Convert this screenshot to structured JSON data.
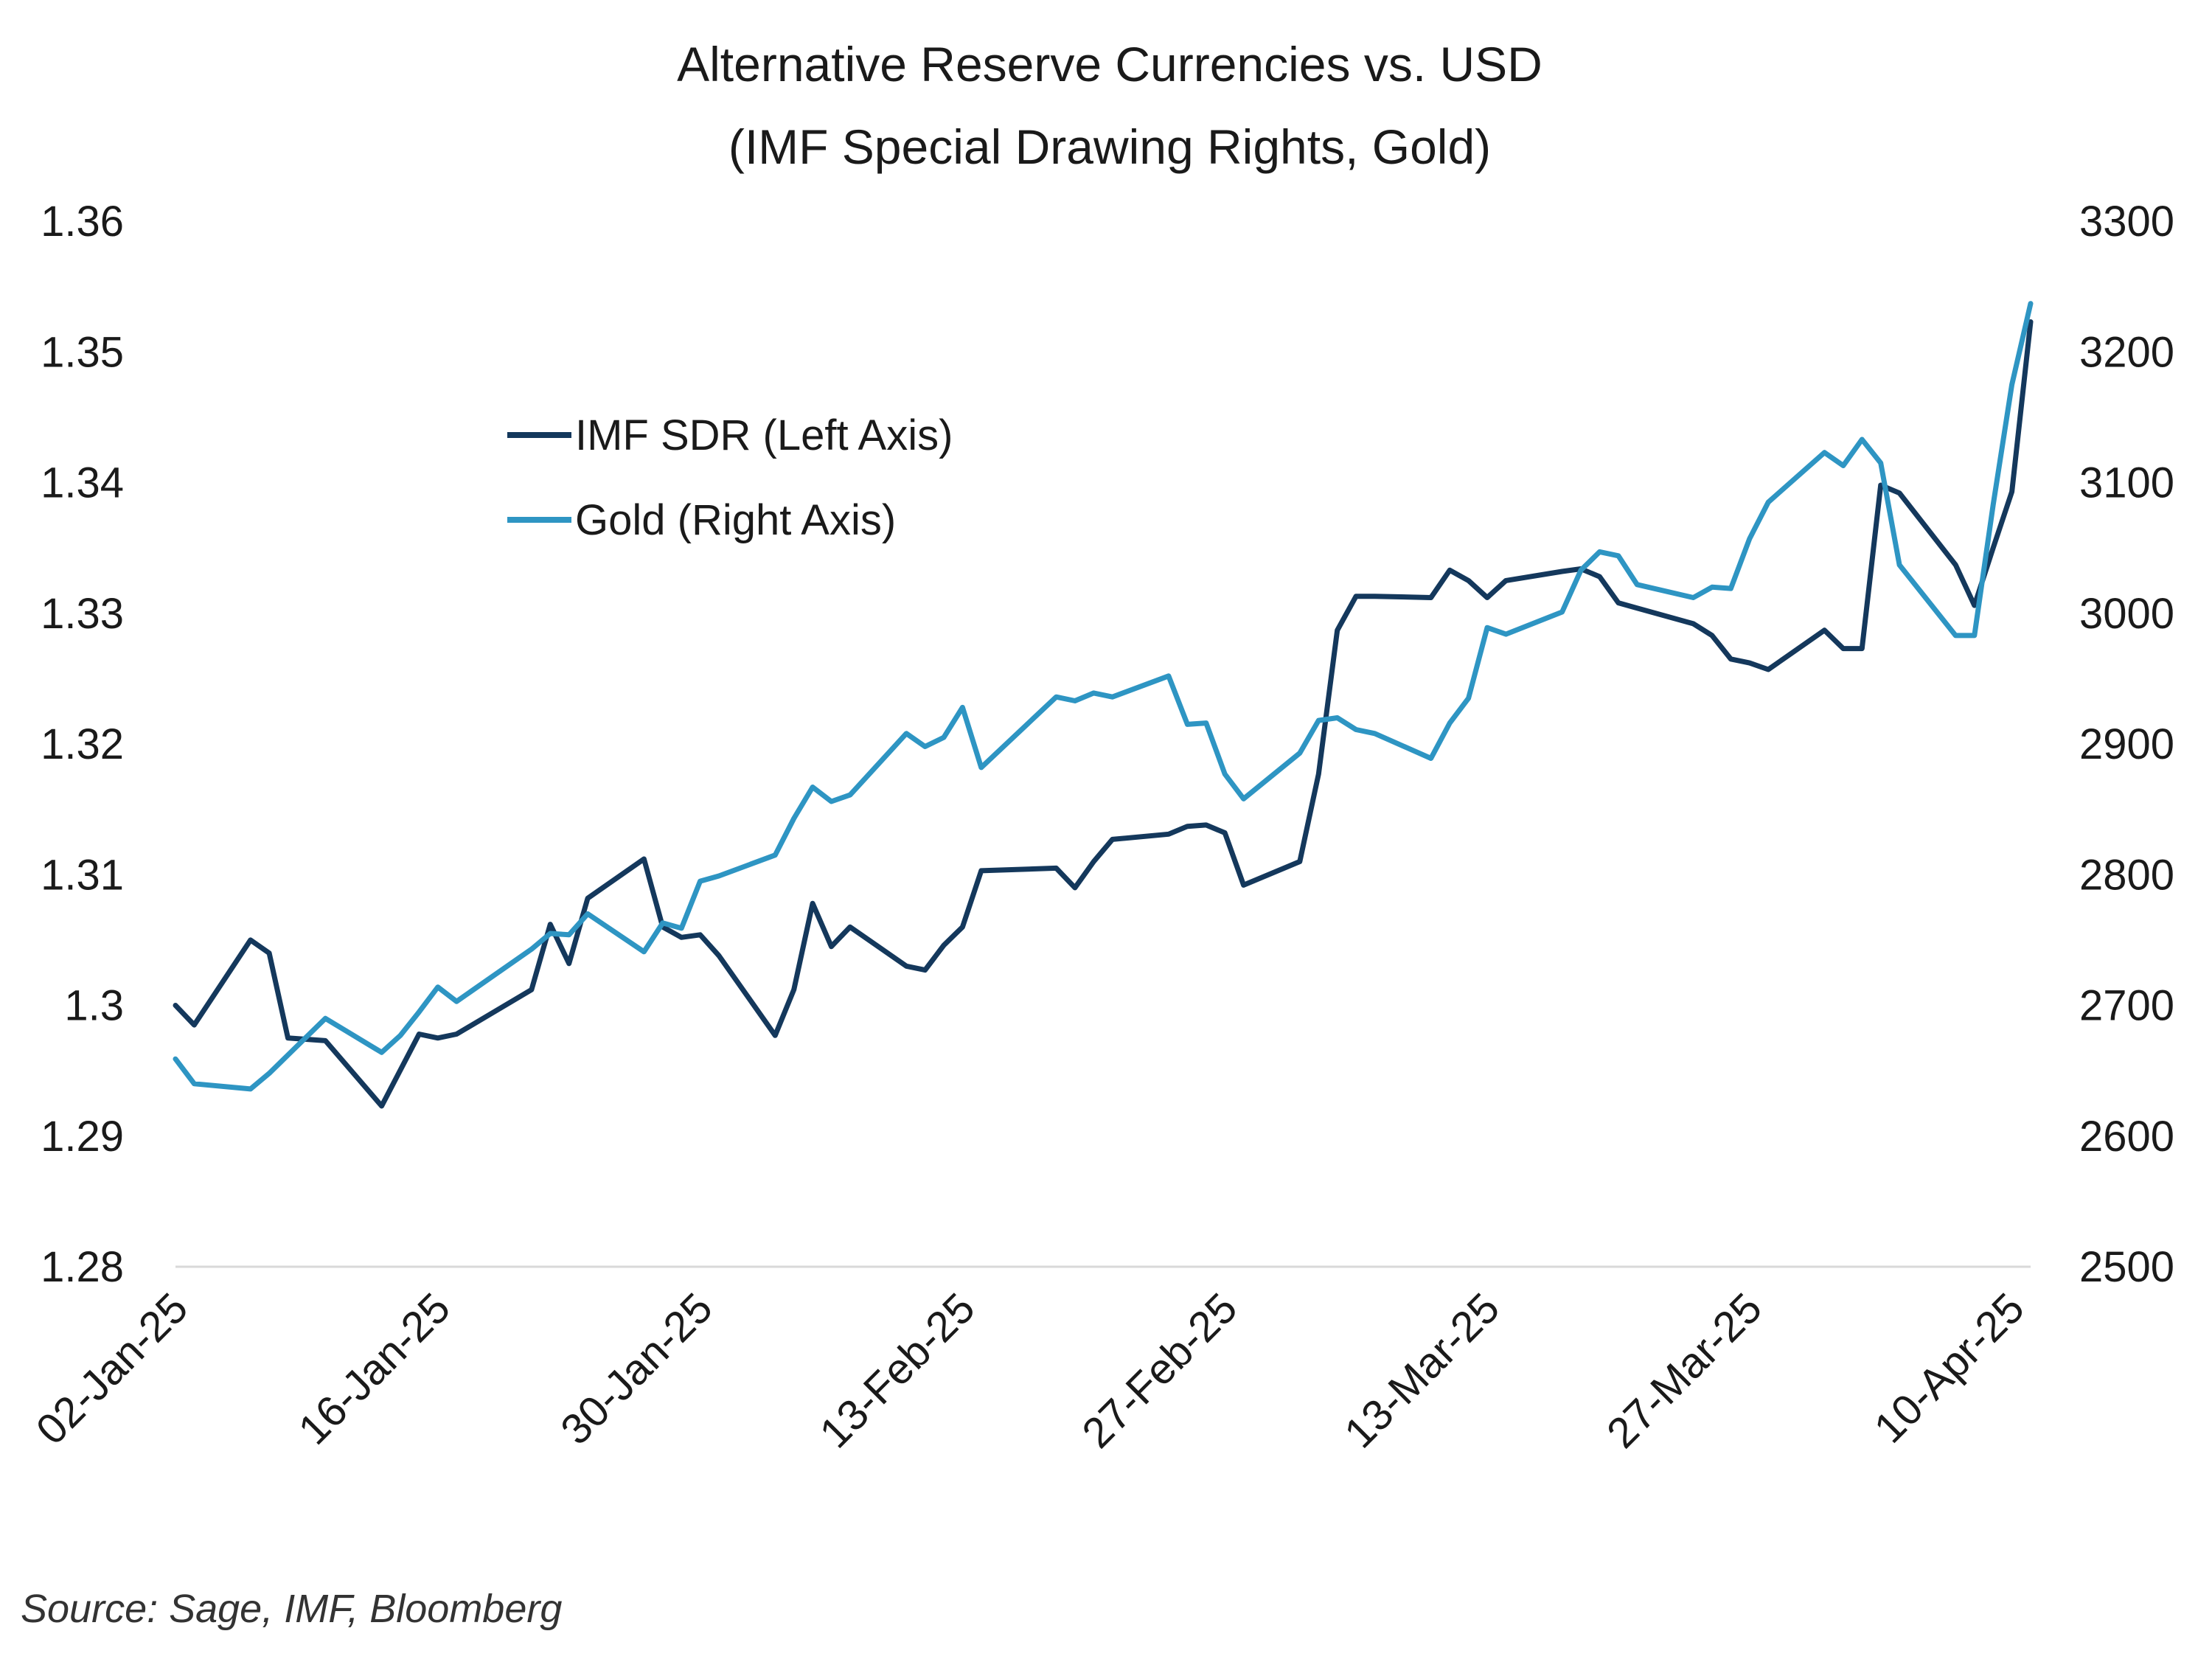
{
  "chart_data": {
    "type": "line",
    "title": [
      "Alternative Reserve Currencies vs. USD",
      "(IMF Special Drawing Rights, Gold)"
    ],
    "source": "Source: Sage, IMF, Bloomberg",
    "x_ticks": [
      "02-Jan-25",
      "16-Jan-25",
      "30-Jan-25",
      "13-Feb-25",
      "27-Feb-25",
      "13-Mar-25",
      "27-Mar-25",
      "10-Apr-25"
    ],
    "x_range": [
      "2025-01-02",
      "2025-04-11"
    ],
    "y_left": {
      "min": 1.28,
      "max": 1.36,
      "ticks": [
        "1.28",
        "1.29",
        "1.3",
        "1.31",
        "1.32",
        "1.33",
        "1.34",
        "1.35",
        "1.36"
      ]
    },
    "y_right": {
      "min": 2500,
      "max": 3300,
      "ticks": [
        "2500",
        "2600",
        "2700",
        "2800",
        "2900",
        "3000",
        "3100",
        "3200",
        "3300"
      ]
    },
    "legend": {
      "placement": "upper-left",
      "entries": [
        "IMF SDR (Left Axis)",
        "Gold (Right Axis)"
      ]
    },
    "grid": false,
    "series": [
      {
        "name": "IMF SDR (Left Axis)",
        "axis": "left",
        "color": "#14385c",
        "points": [
          [
            "2025-01-02",
            1.3
          ],
          [
            "2025-01-03",
            1.2985
          ],
          [
            "2025-01-06",
            1.305
          ],
          [
            "2025-01-07",
            1.304
          ],
          [
            "2025-01-08",
            1.2975
          ],
          [
            "2025-01-10",
            1.2973
          ],
          [
            "2025-01-13",
            1.2923
          ],
          [
            "2025-01-15",
            1.2978
          ],
          [
            "2025-01-16",
            1.2975
          ],
          [
            "2025-01-17",
            1.2978
          ],
          [
            "2025-01-21",
            1.3012
          ],
          [
            "2025-01-22",
            1.3062
          ],
          [
            "2025-01-23",
            1.3032
          ],
          [
            "2025-01-24",
            1.3082
          ],
          [
            "2025-01-27",
            1.3112
          ],
          [
            "2025-01-28",
            1.306
          ],
          [
            "2025-01-29",
            1.3052
          ],
          [
            "2025-01-30",
            1.3054
          ],
          [
            "2025-01-31",
            1.3038
          ],
          [
            "2025-02-03",
            1.2977
          ],
          [
            "2025-02-04",
            1.3012
          ],
          [
            "2025-02-05",
            1.3078
          ],
          [
            "2025-02-06",
            1.3045
          ],
          [
            "2025-02-07",
            1.306
          ],
          [
            "2025-02-10",
            1.303
          ],
          [
            "2025-02-11",
            1.3027
          ],
          [
            "2025-02-12",
            1.3046
          ],
          [
            "2025-02-13",
            1.306
          ],
          [
            "2025-02-14",
            1.3103
          ],
          [
            "2025-02-18",
            1.3105
          ],
          [
            "2025-02-19",
            1.309
          ],
          [
            "2025-02-20",
            1.311
          ],
          [
            "2025-02-21",
            1.3127
          ],
          [
            "2025-02-24",
            1.3131
          ],
          [
            "2025-02-25",
            1.3137
          ],
          [
            "2025-02-26",
            1.3138
          ],
          [
            "2025-02-27",
            1.3132
          ],
          [
            "2025-02-28",
            1.3092
          ],
          [
            "2025-03-03",
            1.311
          ],
          [
            "2025-03-04",
            1.3177
          ],
          [
            "2025-03-05",
            1.3287
          ],
          [
            "2025-03-06",
            1.3313
          ],
          [
            "2025-03-07",
            1.3313
          ],
          [
            "2025-03-10",
            1.3312
          ],
          [
            "2025-03-11",
            1.3333
          ],
          [
            "2025-03-12",
            1.3325
          ],
          [
            "2025-03-13",
            1.3312
          ],
          [
            "2025-03-14",
            1.3325
          ],
          [
            "2025-03-17",
            1.3332
          ],
          [
            "2025-03-18",
            1.3334
          ],
          [
            "2025-03-19",
            1.3328
          ],
          [
            "2025-03-20",
            1.3308
          ],
          [
            "2025-03-21",
            1.3304
          ],
          [
            "2025-03-24",
            1.3292
          ],
          [
            "2025-03-25",
            1.3283
          ],
          [
            "2025-03-26",
            1.3265
          ],
          [
            "2025-03-27",
            1.3262
          ],
          [
            "2025-03-28",
            1.3257
          ],
          [
            "2025-03-31",
            1.3287
          ],
          [
            "2025-04-01",
            1.3273
          ],
          [
            "2025-04-02",
            1.3273
          ],
          [
            "2025-04-03",
            1.3398
          ],
          [
            "2025-04-04",
            1.3392
          ],
          [
            "2025-04-07",
            1.3337
          ],
          [
            "2025-04-08",
            1.3306
          ],
          [
            "2025-04-09",
            1.335
          ],
          [
            "2025-04-10",
            1.3393
          ],
          [
            "2025-04-11",
            1.3523
          ]
        ]
      },
      {
        "name": "Gold (Right Axis)",
        "axis": "right",
        "color": "#2e95c3",
        "points": [
          [
            "2025-01-02",
            2659
          ],
          [
            "2025-01-03",
            2640
          ],
          [
            "2025-01-06",
            2636
          ],
          [
            "2025-01-07",
            2648
          ],
          [
            "2025-01-08",
            2662
          ],
          [
            "2025-01-10",
            2690
          ],
          [
            "2025-01-13",
            2664
          ],
          [
            "2025-01-14",
            2677
          ],
          [
            "2025-01-15",
            2695
          ],
          [
            "2025-01-16",
            2714
          ],
          [
            "2025-01-17",
            2703
          ],
          [
            "2025-01-21",
            2743
          ],
          [
            "2025-01-22",
            2755
          ],
          [
            "2025-01-23",
            2754
          ],
          [
            "2025-01-24",
            2770
          ],
          [
            "2025-01-27",
            2741
          ],
          [
            "2025-01-28",
            2763
          ],
          [
            "2025-01-29",
            2759
          ],
          [
            "2025-01-30",
            2795
          ],
          [
            "2025-01-31",
            2799
          ],
          [
            "2025-02-03",
            2815
          ],
          [
            "2025-02-04",
            2843
          ],
          [
            "2025-02-05",
            2867
          ],
          [
            "2025-02-06",
            2856
          ],
          [
            "2025-02-07",
            2861
          ],
          [
            "2025-02-10",
            2908
          ],
          [
            "2025-02-11",
            2898
          ],
          [
            "2025-02-12",
            2905
          ],
          [
            "2025-02-13",
            2928
          ],
          [
            "2025-02-14",
            2882
          ],
          [
            "2025-02-18",
            2936
          ],
          [
            "2025-02-19",
            2933
          ],
          [
            "2025-02-20",
            2939
          ],
          [
            "2025-02-21",
            2936
          ],
          [
            "2025-02-24",
            2952
          ],
          [
            "2025-02-25",
            2915
          ],
          [
            "2025-02-26",
            2916
          ],
          [
            "2025-02-27",
            2877
          ],
          [
            "2025-02-28",
            2858
          ],
          [
            "2025-03-03",
            2893
          ],
          [
            "2025-03-04",
            2918
          ],
          [
            "2025-03-05",
            2920
          ],
          [
            "2025-03-06",
            2911
          ],
          [
            "2025-03-07",
            2908
          ],
          [
            "2025-03-10",
            2889
          ],
          [
            "2025-03-11",
            2916
          ],
          [
            "2025-03-12",
            2935
          ],
          [
            "2025-03-13",
            2989
          ],
          [
            "2025-03-14",
            2984
          ],
          [
            "2025-03-17",
            3001
          ],
          [
            "2025-03-18",
            3033
          ],
          [
            "2025-03-19",
            3047
          ],
          [
            "2025-03-20",
            3044
          ],
          [
            "2025-03-21",
            3022
          ],
          [
            "2025-03-24",
            3012
          ],
          [
            "2025-03-25",
            3020
          ],
          [
            "2025-03-26",
            3019
          ],
          [
            "2025-03-27",
            3057
          ],
          [
            "2025-03-28",
            3085
          ],
          [
            "2025-03-31",
            3123
          ],
          [
            "2025-04-01",
            3113
          ],
          [
            "2025-04-02",
            3133
          ],
          [
            "2025-04-03",
            3115
          ],
          [
            "2025-04-04",
            3037
          ],
          [
            "2025-04-07",
            2983
          ],
          [
            "2025-04-08",
            2983
          ],
          [
            "2025-04-09",
            3083
          ],
          [
            "2025-04-10",
            3175
          ],
          [
            "2025-04-11",
            3237
          ]
        ]
      }
    ]
  }
}
